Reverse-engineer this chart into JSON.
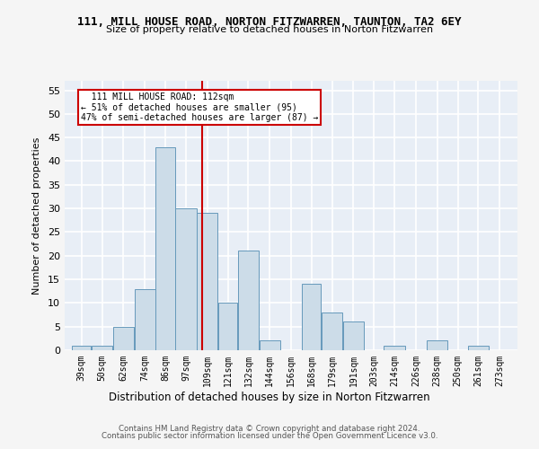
{
  "title": "111, MILL HOUSE ROAD, NORTON FITZWARREN, TAUNTON, TA2 6EY",
  "subtitle": "Size of property relative to detached houses in Norton Fitzwarren",
  "xlabel": "Distribution of detached houses by size in Norton Fitzwarren",
  "ylabel": "Number of detached properties",
  "bar_color": "#ccdce8",
  "bar_edge_color": "#6699bb",
  "background_color": "#e8eef6",
  "fig_color": "#f5f5f5",
  "grid_color": "#ffffff",
  "bins": [
    "39sqm",
    "50sqm",
    "62sqm",
    "74sqm",
    "86sqm",
    "97sqm",
    "109sqm",
    "121sqm",
    "132sqm",
    "144sqm",
    "156sqm",
    "168sqm",
    "179sqm",
    "191sqm",
    "203sqm",
    "214sqm",
    "226sqm",
    "238sqm",
    "250sqm",
    "261sqm",
    "273sqm"
  ],
  "values": [
    1,
    1,
    5,
    13,
    43,
    30,
    29,
    10,
    21,
    2,
    0,
    14,
    8,
    6,
    0,
    1,
    0,
    2,
    0,
    1,
    0
  ],
  "bin_edges": [
    39,
    50,
    62,
    74,
    86,
    97,
    109,
    121,
    132,
    144,
    156,
    168,
    179,
    191,
    203,
    214,
    226,
    238,
    250,
    261,
    273,
    285
  ],
  "vline_x": 112,
  "vline_color": "#cc0000",
  "ylim": [
    0,
    57
  ],
  "yticks": [
    0,
    5,
    10,
    15,
    20,
    25,
    30,
    35,
    40,
    45,
    50,
    55
  ],
  "annotation_text": "  111 MILL HOUSE ROAD: 112sqm\n← 51% of detached houses are smaller (95)\n47% of semi-detached houses are larger (87) →",
  "annotation_box_color": "#ffffff",
  "annotation_border_color": "#cc0000",
  "footer1": "Contains HM Land Registry data © Crown copyright and database right 2024.",
  "footer2": "Contains public sector information licensed under the Open Government Licence v3.0."
}
